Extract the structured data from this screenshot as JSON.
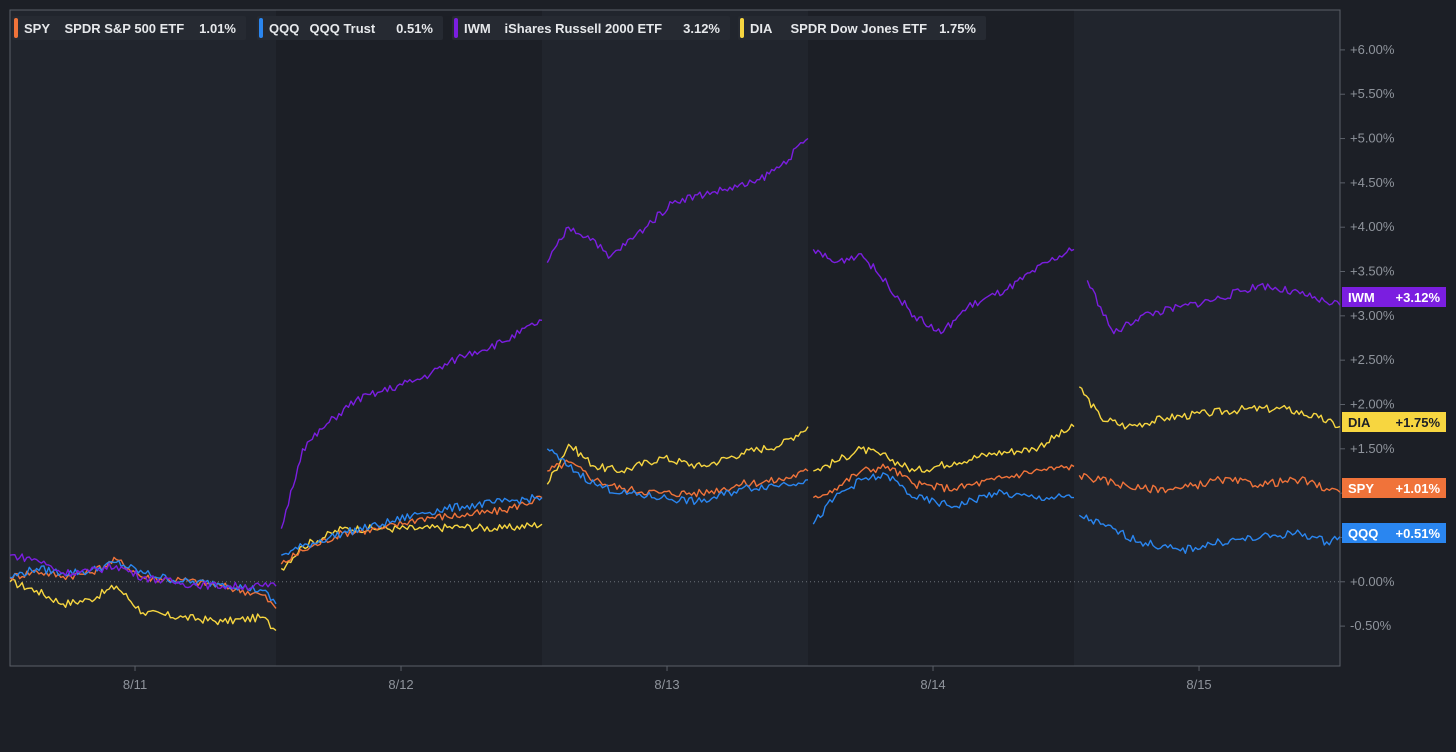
{
  "chart_data": {
    "type": "line",
    "title": "",
    "xlabel": "",
    "ylabel": "",
    "x_ticks": [
      "8/11",
      "8/12",
      "8/13",
      "8/14",
      "8/15"
    ],
    "y_ticks": [
      "-0.50%",
      "+0.00%",
      "+0.50%",
      "+1.00%",
      "+1.50%",
      "+2.00%",
      "+2.50%",
      "+3.00%",
      "+3.50%",
      "+4.00%",
      "+4.50%",
      "+5.00%",
      "+5.50%",
      "+6.00%"
    ],
    "y_tick_values": [
      -0.5,
      0,
      0.5,
      1,
      1.5,
      2,
      2.5,
      3,
      3.5,
      4,
      4.5,
      5,
      5.5,
      6
    ],
    "ylim": [
      -0.95,
      6.45
    ],
    "xlim": [
      0,
      5
    ],
    "grid": false,
    "zero_line": true,
    "legend": "top-left",
    "sessions": [
      "8/11",
      "8/12",
      "8/13",
      "8/14",
      "8/15"
    ],
    "series": [
      {
        "ticker": "SPY",
        "name": "SPDR S&P 500 ETF",
        "legend_value": "1.01%",
        "end_label": "+1.01%",
        "color": "#f0733a",
        "label_text_color": "#ffffff",
        "points": [
          [
            0,
            0.05
          ],
          [
            0.1,
            0.12
          ],
          [
            0.2,
            0.06
          ],
          [
            0.3,
            0.1
          ],
          [
            0.4,
            0.25
          ],
          [
            0.5,
            0.05
          ],
          [
            0.65,
            0.02
          ],
          [
            0.8,
            -0.05
          ],
          [
            0.95,
            -0.15
          ],
          [
            1.0,
            -0.3
          ],
          [
            1.02,
            0.2
          ],
          [
            1.1,
            0.35
          ],
          [
            1.25,
            0.55
          ],
          [
            1.4,
            0.6
          ],
          [
            1.55,
            0.72
          ],
          [
            1.7,
            0.75
          ],
          [
            1.85,
            0.8
          ],
          [
            2.0,
            0.95
          ],
          [
            2.02,
            1.25
          ],
          [
            2.1,
            1.35
          ],
          [
            2.2,
            1.15
          ],
          [
            2.3,
            1.05
          ],
          [
            2.45,
            1.0
          ],
          [
            2.6,
            1.0
          ],
          [
            2.75,
            1.1
          ],
          [
            2.9,
            1.15
          ],
          [
            3.0,
            1.25
          ],
          [
            3.02,
            0.95
          ],
          [
            3.1,
            1.05
          ],
          [
            3.2,
            1.25
          ],
          [
            3.3,
            1.3
          ],
          [
            3.4,
            1.1
          ],
          [
            3.55,
            1.05
          ],
          [
            3.7,
            1.15
          ],
          [
            3.85,
            1.25
          ],
          [
            4.0,
            1.3
          ],
          [
            4.02,
            1.2
          ],
          [
            4.1,
            1.15
          ],
          [
            4.25,
            1.05
          ],
          [
            4.4,
            1.05
          ],
          [
            4.55,
            1.15
          ],
          [
            4.7,
            1.1
          ],
          [
            4.85,
            1.15
          ],
          [
            4.95,
            1.05
          ],
          [
            5.0,
            1.01
          ]
        ]
      },
      {
        "ticker": "QQQ",
        "name": "QQQ Trust",
        "legend_value": "0.51%",
        "end_label": "+0.51%",
        "color": "#2a86f0",
        "label_text_color": "#ffffff",
        "points": [
          [
            0,
            0.05
          ],
          [
            0.1,
            0.15
          ],
          [
            0.2,
            0.1
          ],
          [
            0.3,
            0.12
          ],
          [
            0.4,
            0.22
          ],
          [
            0.5,
            0.1
          ],
          [
            0.65,
            0.0
          ],
          [
            0.8,
            -0.02
          ],
          [
            0.95,
            -0.1
          ],
          [
            1.0,
            -0.25
          ],
          [
            1.02,
            0.3
          ],
          [
            1.1,
            0.4
          ],
          [
            1.25,
            0.55
          ],
          [
            1.4,
            0.65
          ],
          [
            1.55,
            0.78
          ],
          [
            1.7,
            0.85
          ],
          [
            1.85,
            0.9
          ],
          [
            2.0,
            0.95
          ],
          [
            2.02,
            1.5
          ],
          [
            2.1,
            1.3
          ],
          [
            2.2,
            1.1
          ],
          [
            2.3,
            1.0
          ],
          [
            2.45,
            0.95
          ],
          [
            2.6,
            0.9
          ],
          [
            2.75,
            1.05
          ],
          [
            2.9,
            1.1
          ],
          [
            3.0,
            1.15
          ],
          [
            3.02,
            0.65
          ],
          [
            3.1,
            0.95
          ],
          [
            3.2,
            1.15
          ],
          [
            3.3,
            1.2
          ],
          [
            3.4,
            0.95
          ],
          [
            3.55,
            0.85
          ],
          [
            3.7,
            1.0
          ],
          [
            3.85,
            0.95
          ],
          [
            4.0,
            0.95
          ],
          [
            4.02,
            0.75
          ],
          [
            4.1,
            0.65
          ],
          [
            4.25,
            0.45
          ],
          [
            4.4,
            0.35
          ],
          [
            4.55,
            0.45
          ],
          [
            4.7,
            0.5
          ],
          [
            4.85,
            0.55
          ],
          [
            4.95,
            0.45
          ],
          [
            5.0,
            0.51
          ]
        ]
      },
      {
        "ticker": "IWM",
        "name": "iShares Russell 2000 ETF",
        "legend_value": "3.12%",
        "end_label": "+3.12%",
        "color": "#7b1ee0",
        "label_text_color": "#ffffff",
        "points": [
          [
            0,
            0.3
          ],
          [
            0.1,
            0.25
          ],
          [
            0.2,
            0.1
          ],
          [
            0.3,
            0.12
          ],
          [
            0.4,
            0.18
          ],
          [
            0.5,
            0.05
          ],
          [
            0.65,
            -0.02
          ],
          [
            0.8,
            -0.05
          ],
          [
            0.95,
            -0.05
          ],
          [
            1.0,
            -0.05
          ],
          [
            1.02,
            0.6
          ],
          [
            1.1,
            1.5
          ],
          [
            1.2,
            1.8
          ],
          [
            1.3,
            2.05
          ],
          [
            1.4,
            2.15
          ],
          [
            1.55,
            2.3
          ],
          [
            1.7,
            2.55
          ],
          [
            1.85,
            2.7
          ],
          [
            2.0,
            2.95
          ],
          [
            2.02,
            3.6
          ],
          [
            2.1,
            4.0
          ],
          [
            2.2,
            3.85
          ],
          [
            2.25,
            3.65
          ],
          [
            2.35,
            3.9
          ],
          [
            2.5,
            4.3
          ],
          [
            2.65,
            4.4
          ],
          [
            2.8,
            4.5
          ],
          [
            2.9,
            4.7
          ],
          [
            3.0,
            5.0
          ],
          [
            3.02,
            3.75
          ],
          [
            3.1,
            3.6
          ],
          [
            3.2,
            3.7
          ],
          [
            3.3,
            3.35
          ],
          [
            3.4,
            3.0
          ],
          [
            3.5,
            2.8
          ],
          [
            3.6,
            3.1
          ],
          [
            3.75,
            3.3
          ],
          [
            3.9,
            3.6
          ],
          [
            4.0,
            3.75
          ],
          [
            4.05,
            3.4
          ],
          [
            4.1,
            3.1
          ],
          [
            4.15,
            2.8
          ],
          [
            4.25,
            3.0
          ],
          [
            4.4,
            3.1
          ],
          [
            4.55,
            3.2
          ],
          [
            4.7,
            3.35
          ],
          [
            4.85,
            3.25
          ],
          [
            4.95,
            3.15
          ],
          [
            5.0,
            3.12
          ]
        ]
      },
      {
        "ticker": "DIA",
        "name": "SPDR Dow Jones ETF",
        "legend_value": "1.75%",
        "end_label": "+1.75%",
        "color": "#f7d640",
        "label_text_color": "#1c1f26",
        "points": [
          [
            0,
            0.0
          ],
          [
            0.1,
            -0.1
          ],
          [
            0.2,
            -0.25
          ],
          [
            0.3,
            -0.2
          ],
          [
            0.4,
            -0.05
          ],
          [
            0.5,
            -0.35
          ],
          [
            0.65,
            -0.4
          ],
          [
            0.8,
            -0.45
          ],
          [
            0.95,
            -0.4
          ],
          [
            1.0,
            -0.55
          ],
          [
            1.02,
            0.15
          ],
          [
            1.1,
            0.4
          ],
          [
            1.25,
            0.6
          ],
          [
            1.4,
            0.6
          ],
          [
            1.55,
            0.6
          ],
          [
            1.7,
            0.62
          ],
          [
            1.85,
            0.6
          ],
          [
            2.0,
            0.65
          ],
          [
            2.02,
            1.1
          ],
          [
            2.1,
            1.55
          ],
          [
            2.2,
            1.3
          ],
          [
            2.3,
            1.25
          ],
          [
            2.45,
            1.4
          ],
          [
            2.6,
            1.3
          ],
          [
            2.75,
            1.45
          ],
          [
            2.9,
            1.55
          ],
          [
            3.0,
            1.75
          ],
          [
            3.02,
            1.25
          ],
          [
            3.1,
            1.35
          ],
          [
            3.2,
            1.5
          ],
          [
            3.3,
            1.4
          ],
          [
            3.4,
            1.25
          ],
          [
            3.55,
            1.35
          ],
          [
            3.7,
            1.45
          ],
          [
            3.85,
            1.5
          ],
          [
            4.0,
            1.75
          ],
          [
            4.02,
            2.2
          ],
          [
            4.1,
            1.85
          ],
          [
            4.2,
            1.75
          ],
          [
            4.35,
            1.85
          ],
          [
            4.5,
            1.9
          ],
          [
            4.65,
            1.95
          ],
          [
            4.8,
            1.95
          ],
          [
            4.92,
            1.85
          ],
          [
            5.0,
            1.75
          ]
        ]
      }
    ]
  }
}
